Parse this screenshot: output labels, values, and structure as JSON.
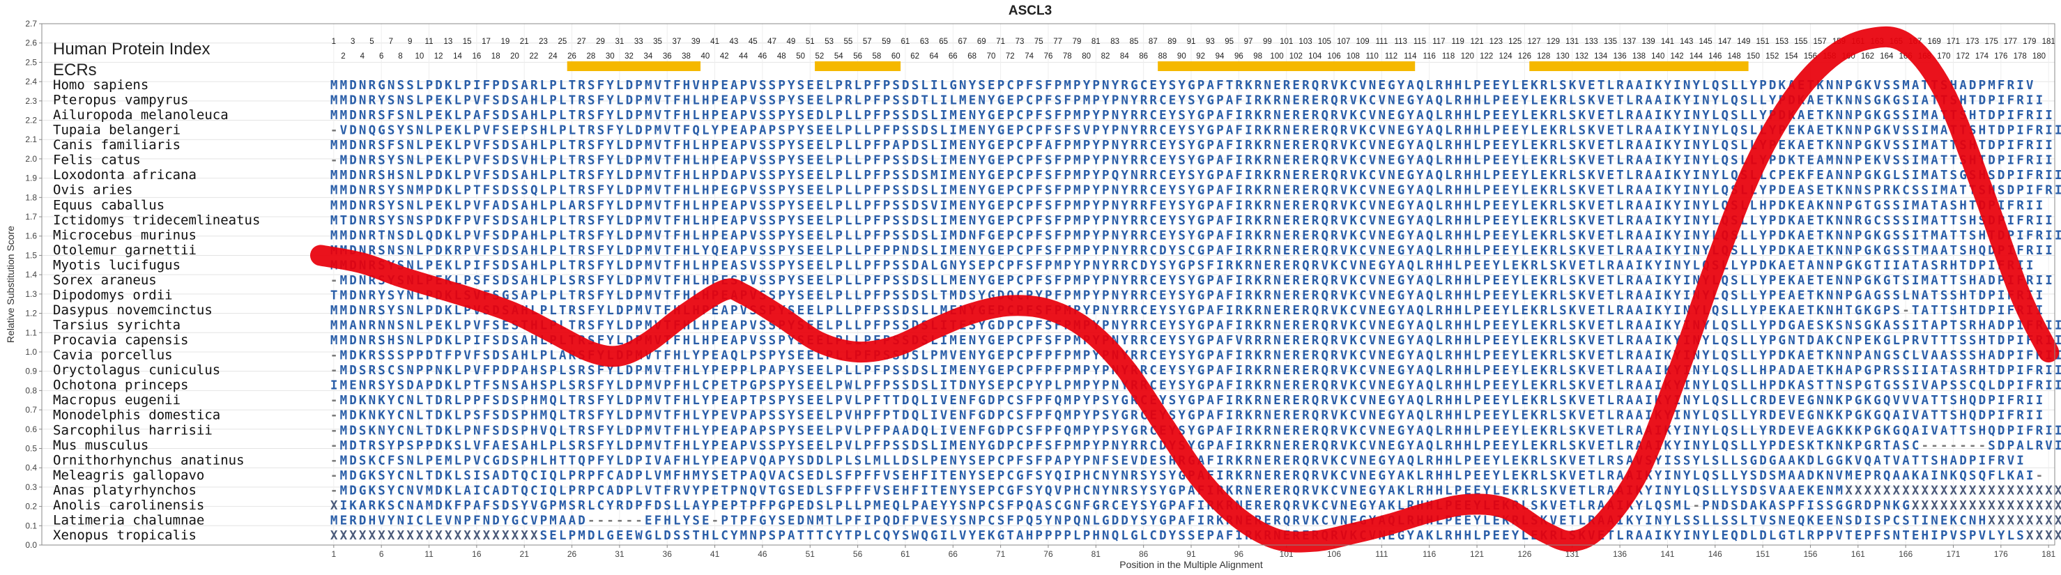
{
  "chart_data": {
    "type": "line",
    "title": "ASCL3",
    "xlabel": "Position in the Multiple Alignment",
    "ylabel": "Relative Substitution Score",
    "ylim": [
      0.0,
      2.7
    ],
    "xlim": [
      1,
      181
    ],
    "x_ticks": [
      1,
      6,
      11,
      16,
      21,
      26,
      31,
      36,
      41,
      46,
      51,
      56,
      61,
      66,
      71,
      76,
      81,
      86,
      91,
      96,
      101,
      106,
      111,
      116,
      121,
      126,
      131,
      136,
      141,
      146,
      151,
      156,
      161,
      166,
      171,
      176,
      181
    ],
    "y_ticks": [
      0.0,
      0.1,
      0.2,
      0.3,
      0.4,
      0.5,
      0.6,
      0.7,
      0.8,
      0.9,
      1.0,
      1.1,
      1.2,
      1.3,
      1.4,
      1.5,
      1.6,
      1.7,
      1.8,
      1.9,
      2.0,
      2.1,
      2.2,
      2.3,
      2.4,
      2.5,
      2.6,
      2.7
    ],
    "grid": true,
    "protein_index_label": "Human Protein Index",
    "ecr_label": "ECRs",
    "protein_index_max": 181,
    "ecr_regions": [
      [
        26,
        39
      ],
      [
        52,
        60
      ],
      [
        88,
        114
      ],
      [
        127,
        149
      ]
    ],
    "series": [
      {
        "color": "#e8000b",
        "x": [
          1,
          4,
          8,
          12,
          16,
          20,
          24,
          28,
          31,
          34,
          38,
          42,
          44,
          48,
          52,
          56,
          60,
          64,
          68,
          72,
          76,
          80,
          84,
          88,
          92,
          96,
          100,
          104,
          108,
          112,
          116,
          120,
          124,
          128,
          131,
          134,
          138,
          142,
          146,
          150,
          154,
          158,
          162,
          166,
          170,
          174,
          178,
          181
        ],
        "y": [
          1.5,
          1.46,
          1.39,
          1.33,
          1.27,
          1.2,
          1.1,
          1.0,
          0.98,
          1.05,
          1.2,
          1.32,
          1.3,
          1.18,
          1.05,
          1.0,
          1.03,
          1.12,
          1.2,
          1.24,
          1.22,
          1.12,
          0.92,
          0.63,
          0.34,
          0.14,
          0.03,
          0.02,
          0.06,
          0.11,
          0.17,
          0.21,
          0.19,
          0.07,
          0.02,
          0.1,
          0.38,
          0.88,
          1.45,
          1.95,
          2.3,
          2.52,
          2.62,
          2.6,
          2.35,
          1.85,
          1.3,
          1.0
        ]
      }
    ]
  },
  "alignment": {
    "species": [
      "Homo sapiens",
      "Pteropus vampyrus",
      "Ailuropoda melanoleuca",
      "Tupaia belangeri",
      "Canis familiaris",
      "Felis catus",
      "Loxodonta africana",
      "Ovis aries",
      "Equus caballus",
      "Ictidomys tridecemlineatus",
      "Microcebus murinus",
      "Otolemur garnettii",
      "Myotis lucifugus",
      "Sorex araneus",
      "Dipodomys ordii",
      "Dasypus novemcinctus",
      "Tarsius syrichta",
      "Procavia capensis",
      "Cavia porcellus",
      "Oryctolagus cuniculus",
      "Ochotona princeps",
      "Macropus eugenii",
      "Monodelphis domestica",
      "Sarcophilus harrisii",
      "Mus musculus",
      "Ornithorhynchus anatinus",
      "Meleagris gallopavo",
      "Anas platyrhynchos",
      "Anolis carolinensis",
      "Latimeria chalumnae",
      "Xenopus tropicalis"
    ],
    "sequences": [
      "MMDNRGNSSLPDKLPIFPDSARLPLTRSFYLDPMVTFHVHPEAPVSSPYSEELPRLPFPSDSLILGNYSEPCPFSFPMPYPNYRGCEYSYGPAFTRKRNERERQRVKCVNEGYAQLRHHLPEEYLEKRLSKVETLRAAIKYINYLQSLLYPDKAETKNNPGKVSSMATTSHADPMFRIV",
      "MMDNRYSNSLPEKLPVFSDSAHLPLTRSFYLDPMVTFHLHPEAPVSSPYSEELPRLPFPSSDTLILMENYGEPCPFSFPMPYPNYRRCEYSYGPAFIRKRNERERQRVKCVNEGYAQLRHHLPEEYLEKRLSKVETLRAAIKYINYLQSLLYPDKAETKNNSGKGSIATTSHTDPIFRII",
      "MMDNRSFSNLPEKLPAFSDSAHLPLTRSFYLDPMVTFHLHPEAPVSSPYSEDLPLLPFPSSDSLIMENYGEPCPFSFPMPYPNYRRCEYSYGPAFIRKRNERERQRVKCVNEGYAQLRHHLPEEYLEKRLSKVETLRAAIKYINYLQSLLYPDKAETKNNPGKGSSIMATTSHTDPIFRII",
      "-VDNQGSYSNLPEKLPVFSEPSHLPLTRSFYLDPMVTFQLYPEAPAPSPYSEELPLLPFPSSDSLIMENYGEPCPFSFSVPYPNYRRCEYSYGPAFIRKRNERERQRVKCVNEGYAQLRHHLPEEYLEKRLSKVETLRAAIKYINYLQSLLYPEKAETKNNPGKVSSIMATTSHTDPIFRII",
      "MMDNRSFSNLPEKLPVFSDSAHLPLTRSFYLDPMVTFHLHPEAPVSSPYSEELPLLPFPAPDSLIMENYGEPCPFAFPMPYPNYRRCEYSYGPAFIRKRNERERQRVKCVNEGYAQLRHHLPEEYLEKRLSKVETLRAAIKYINYLQSLLYPEKAETKNNPGKVSSIMATTSHTDPIFRII",
      "-MDNRSYSNLPEKLPVFSDSVHLPLTRSFYLDPMVTFHLHPEAPVSSPYSEELPLLPFPSSDSLIMENYGEPCPFSFPMPYPNYRRCEYSYGPAFIRKRNERERQRVKCVNEGYAQLRHHLPEEYLEKRLSKVETLRAAIKYINYLQSLLYPDKTEAMNNPEKVSSIMATTSHTDPIFRII",
      "MMDNRSHSNLPDKLPVFSDSAHLPLTRSFYLDPMVTFHLHPDAPVSSPYSEELPLLPFPSSDSMIMENYGEPCPFSFPMPYPQYNRRCEYSYGPAFIRKRNERERQRVKCVNEGYAQLRHHLPEEYLEKRLSKVETLRAAIKYINYLQSLLCPEKFEANNPGKGLSIMATSGSHSDPIFRII",
      "MMDNRSYSNMPDKLPTFSDSSQLPLTRSFYLDPMVTFHLHPEGPVSSPYSEELPLLPFPSSDSLIMENYGEPCPFSFPMPYPNYRRCEYSYGPAFIRKRNERERQRVKCVNEGYAQLRHHLPEEYLEKRLSKVETLRAAIKYINYLQSLLYPDEASETKNNSPRKCSSIMATTSHSDPIFRII",
      "MMDNRSYSNLPEKLPVFADSAHLPLARSFYLDPMVTFHLHPEAPVSSPYSEELPLLPFPSSDSVIMENYGEPCPFSFPMPYPNYRRFEYSYGPAFIRKRNERERQRVKCVNEGYAQLRHHLPEEYLEKRLSKVETLRAAIKYINYLQSLLHPDKEAKNNPGTGSSIMATASHTDPIFRII",
      "MTDNRSYSNSPDKFPVFSDSAHLPLTRSFYLDPMVTFHLHPEAPVSSPYSEELPLLPFPSSDSLIMENYGEPCPFSFPMPYPNYRRCEYSYGPAFIRKRNERERQRVKCVNEGYAQLRHHLPEEYLEKRLSKVETLRAAIKYINYLQSLLYPDKAETKNNRGCSSSIMATTSHSDPIFRII",
      "MMDNRTNSDLQDKLPVFSDPAHLPLTRSFYLDPMVTFHLHPEAPVSSPYSEELPLLPFPSSDSLIMDNFGEPCPFSFPMPYPNYRRCEYSYGPAFIRKRNERERQRVKCVNEGYAQLRHHLPEEYLEKRLSKVETLRAAIKYINYLQSLLYPDKAETKNNPGKGSSITMATTSHTDPIFRII",
      "MMDNRSNSNLPDKRPVFSDSAHLPLTRSFYLDPMVTFHLYQEAPVSSPYSEELPLLPFPPNDSLIMENYGEPCPFSFPMPYPNYRRCDYSCGPAFIRKRNERERQRVKCVNEGYAQLRHHLPEEYLEKRLSKVETLRAAIKYINYLQSLLYPDKAETKNNPGKGSSTMAATSHQDPIFRII",
      "MMDNRSYSNLPEKLPIFSDSAHLPLTRSFYLDPMVTFHLHPEASVSSPYSEELPLLPFPSSDALGNYSEPCPFSFPMPYPNYRRCDYSYGPSFIRKRNERERQRVKCVNEGYAQLRHHLPEEYLEKRLSKVETLRAAIKYINYLQSLLYPDKAETANNPGKGTIIATASRHTDPIFRII",
      "-MDNRSYSNLPEKLPSFSDSAHLPLSRSFYLDPMVTFHLHPESPVSSPYSEELPLLPFPSSDSLLMENYGEPCPFSFPMPYPNYRRCEYSYGPAFIRKRNERERQRVKCVNEGYAQLRHHLPEEYLEKRLSKVETLRAAIKYINYLQSLLYPEKAETENNPGKGTSIMATTSHADPIFRII",
      "TMDNRYSYNLPDKLSVFSGSAPLPLTRSFYLDPMVTFHLHPEAPVSSPYSEELPLLPFPSSDSLTMDSYGDQCPYPFPMPYPNYRRCEYSYGPAFIRKRNERERQRVKCVNEGYAQLRHHLPEEYLEKRLSKVETLRAAIKYINYLQSLLYPEAETKNNPGAGSSLNATSSHTDPIFRII",
      "MMDNRSYSNLPDKLPVSDSAHLPLTRSFYLDPMVTFHLHPEAPVSSPYSEELPLLPFPSSDSLLMENYGEPCPFSFPMPYPNYRRCEYSYGPAFIRKRNERERQRVKCVNEGYAQLRHHLPEEYLEKRLSKVETLRAAIKYINYLQSLLYPEKAETKNHTGKGPS-TATTSHTDPIFRII",
      "MMANRNNSNLPEKLPVFSESTHLPLTRSFYLDPMVTFHLHPEAPVSSPYSEELPLLPFPSSDSLITESYGDPCPFSFPMPYPNYRRCEYSYGPAFIRKRNERERQRVKCVNEGYAQLRHHLPEEYLEKRLSKVETLRAAIKYINYLQSLLYPDGAESKSNSGKASSITAPTSRHADPIFRII",
      "MMDNRSHSNLPDKLPIFSDSAHLPLTRSFYLDPMVTFHLHPEAPVSSPYSEELPLLPFPSSDSLIMENYGEPCPFSFPMPYPNYRRCEYSYGPAFVRRRNERERQRVKCVNEGYAQLRHHLPEEYLEKRLSKVETLRAAIKYINYLQSLLYPGNTDAKCNPEKGLPRVTTTSSHTDPIFRII",
      "-MDKRSSSPPDTFPVFSDSAHLPLARSFYLDPMVTFHLYPEAQLPSPYSEELPLLPFPSSDSLPMVENYGEPCPFPFPMPYPNYRRCEYSYGPAFIRKRNERERQRVKCVNEGYAQLRHHLPEEYLEKRLSKVETLRAAIKYINYLQSLLYPDKAETKNNPANGSCLVAASSSHADPIFRII",
      "-MDSRSCSNPPNKLPVFPDPAHSPLSRSFYLDPMVTFHLYPEPPLPAPYSEELPLLPFPSSDSLIMENYGEPCPFPFPMPYPNYRRCEYSYGPAFIRKRNERERQRVKCVNEGYAQLRHHLPEEYLEKRLSKVETLRAAIKYINYLQSLLHPADAETKHAPGPRSSIIATASRHTDPIFRII",
      "IMENRSYSDAPDKLPTFSNSAHSPLSRSFYLDPMVPFHLCPETPGPSPYSEELPWLPFPSSDSLITDNYSEPCPYPLPMPYPNYRRCEYSYGPAFIRKRNERERQRVKCVNEGYAQLRHHLPEEYLEKRLSKVETLRAAIKYINYLQSLLHPDKASTTNSPGTGSSIVAPSSCQLDPIFRII",
      "-MDKNKYCNLTDRLPPFSDSPHMQLTRSFYLDPMVTFHLYPEAPTPSPYSEELPVLPFTTDQLIVENFGDPCSFPFQMPYPSYGRCEYSYGPAFIRKRNERERQRVKCVNEGYAQLRHHLPEEYLEKRLSKVETLRAAIKYINYLQSLLCRDEVEGNNKPGKGQVVVATTSHQDPIFRII",
      "-MDKNKYCNLTDKLPSFSDSPHMQLTRSFYLDPMVTFHLYPEVPAPSSYSEELPVHPFPTDQLIVENFGDPCSFPFQMPYPSYGRCEYSYGPAFIRKRNERERQRVKCVNEGYAQLRHHLPEEYLEKRLSKVETLRAAIKYINYLQSLLYRDEVEGNKKPGKGQAIVATTSHQDPIFRII",
      "-MDSKNYCNLTDKLPNFSDSPHVQLTRSFYLDPMVTFHLYPEAPAPSPYSEELPVLPFPAADQLIVENFGDPCSFPFQMPYPSYGRCEYSYGPAFIRKRNERERQRVKCVNEGYAQLRHHLPEEYLEKRLSKVETLRAAIKYINYLQSLLYRDEVEAGKKKPGKGQAIVATTSHQDPIFRII",
      "-MDTRSYPSPPDKSLVFAESAHLPLSRSFYLDPMVTFHLYPEAPVSSPYSEELPVLPFPSSDSLIMENYGDPCPFSFPMPYPNYRRCDYSYGPAFIRKRNERERQRVKCVNEGYAQLRHHLPEEYLEKRLSKVETLRAAIKYINYLQSLLYPDESKTKNKPGRTASC-------SDPALRVI",
      "-MDSKCFSNLPEMLPVCGDSPHLHTTQPFYLDPIVAFHLYPEAPVQAPYSDDLPLSLMLLDSLPENYSEPCPFSFPAPYPNFSEVDESHRGAFIRKRNERERQRVKCVNEGYAQLRHHLPEEYLEKRLSKVETLRSAVSYISSYLSLLSGDGAAKDLGGKVQATVATTSHADPIFRVI",
      "-MDGKSYCNLTDKLSISADTQCIQLPRPFCADPLVMFHMYSETPAQVACSEDLSFPFFVSEHFITENYSEPCGFSYQIPHCNYNRSYSYGPAFIRKRNERERQRVKCVNEGYAKLRHHLPEEYLEKRLSKVETLRAAIKYINYLQSLLYSDSMAADKNVMEPRQAAKAINKQSQFLKAI-",
      "-MDGKSYCNVMDKLAICADTQCIQLPRPCADPLVTFRVYPETPNQVTGSEDLSFPFFVSEHFITENYSEPCGFSYQVPHCNYNRSYSYGPAFIRKRNERERQRVKCVNEGYAKLRHHLPEEYLEKRLSKVETLRAAIKYINYLQSLLYSDSVAAEKENMXXXXXXXXXXXXXXXXXXXXXXX",
      "XIKARKSCNAMDKFPAFSDSYVGPMSRLCYRDPFDSLLAYPEPTPFPGPEDSLPLLPMEQLPAEYYSNPCSFPQASCGNFGRCEYSYGPAFIRKRNERERQRVKCVNEGYAKLRHHLPEEYLEKRLSKVETLRAAIKYLQSML-PNDSDAKASPFISSGGRDPNKGXXXXXXXXXXXXXXXXXX",
      "MERDHVYNICLEVNPFNDYGCVPMAAD------EFHLYSE-PTPFGYSEDNMTLPFIPQDFPVESYSNPCSFPQ5YNPQNLGDDYSYGPAFIRKRNERERQRVKCVNEGYAQLRHHLPEEYLEKRLSKVETLRAAIKYINYLSSLLSSLTVSNEQKEENSDISPCSTINEKCNHXXXXXXXXXX",
      "XXXXXXXXXXXXXXXXXXXXXXSELPMDLGEEWGLDSSTHLCYMNPSPATTTCYTPLCQYSWQGILVYEKGTAHPPPPLPHNQLGLCDYSSEPAFIRKRNERERQRVKCVNEGYAKLRHHLPEEYLEKRLSKVETLRAAIKYINYLEQDLDLGTLRPPVTEPFSNTEHIPVSPVLYLSXXXXXXX"
    ]
  }
}
